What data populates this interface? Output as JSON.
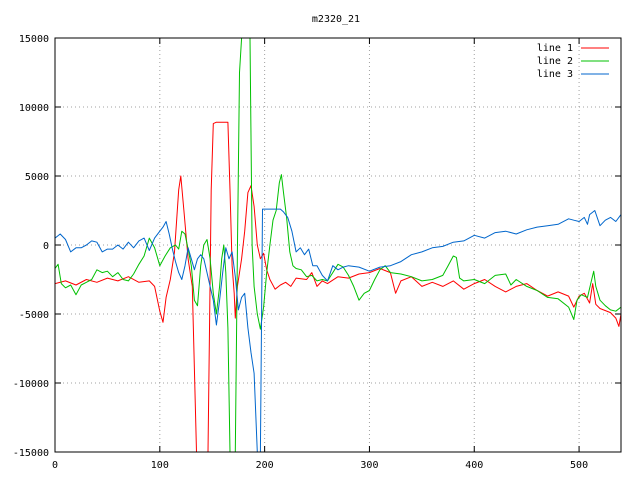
{
  "chart_data": {
    "type": "line",
    "title": "m2320_21",
    "xlabel": "",
    "ylabel": "",
    "xlim": [
      0,
      540
    ],
    "ylim": [
      -15000,
      15000
    ],
    "x_ticks": [
      0,
      100,
      200,
      300,
      400,
      500
    ],
    "y_ticks": [
      -15000,
      -10000,
      -5000,
      0,
      5000,
      10000,
      15000
    ],
    "grid": true,
    "legend_position": "top-right",
    "series": [
      {
        "name": "line 1",
        "color": "#ff0000",
        "points": [
          [
            0,
            -2800
          ],
          [
            10,
            -2600
          ],
          [
            20,
            -2900
          ],
          [
            30,
            -2500
          ],
          [
            40,
            -2700
          ],
          [
            50,
            -2400
          ],
          [
            60,
            -2600
          ],
          [
            70,
            -2300
          ],
          [
            80,
            -2700
          ],
          [
            90,
            -2600
          ],
          [
            95,
            -3000
          ],
          [
            100,
            -4800
          ],
          [
            103,
            -5600
          ],
          [
            106,
            -3800
          ],
          [
            110,
            -2500
          ],
          [
            114,
            -500
          ],
          [
            118,
            4000
          ],
          [
            120,
            5000
          ],
          [
            123,
            2500
          ],
          [
            127,
            -1000
          ],
          [
            131,
            -3000
          ],
          [
            135,
            -15000
          ],
          [
            146,
            -15000
          ],
          [
            149,
            4000
          ],
          [
            151,
            8800
          ],
          [
            154,
            8900
          ],
          [
            165,
            8900
          ],
          [
            167,
            4000
          ],
          [
            169,
            -1500
          ],
          [
            171,
            -3500
          ],
          [
            172,
            -5300
          ],
          [
            174,
            -3000
          ],
          [
            178,
            -1000
          ],
          [
            181,
            1000
          ],
          [
            184,
            3800
          ],
          [
            187,
            4300
          ],
          [
            190,
            2800
          ],
          [
            193,
            0
          ],
          [
            196,
            -1000
          ],
          [
            199,
            -600
          ],
          [
            202,
            -1800
          ],
          [
            205,
            -2500
          ],
          [
            210,
            -3200
          ],
          [
            215,
            -2900
          ],
          [
            220,
            -2700
          ],
          [
            225,
            -3000
          ],
          [
            230,
            -2400
          ],
          [
            240,
            -2500
          ],
          [
            245,
            -2000
          ],
          [
            250,
            -3000
          ],
          [
            255,
            -2600
          ],
          [
            260,
            -2800
          ],
          [
            270,
            -2300
          ],
          [
            280,
            -2400
          ],
          [
            290,
            -2100
          ],
          [
            300,
            -2000
          ],
          [
            310,
            -1700
          ],
          [
            320,
            -2000
          ],
          [
            325,
            -3500
          ],
          [
            330,
            -2600
          ],
          [
            340,
            -2300
          ],
          [
            350,
            -3000
          ],
          [
            360,
            -2700
          ],
          [
            370,
            -3000
          ],
          [
            380,
            -2600
          ],
          [
            390,
            -3200
          ],
          [
            400,
            -2800
          ],
          [
            410,
            -2500
          ],
          [
            420,
            -3000
          ],
          [
            430,
            -3400
          ],
          [
            440,
            -3000
          ],
          [
            450,
            -2800
          ],
          [
            460,
            -3300
          ],
          [
            470,
            -3700
          ],
          [
            480,
            -3400
          ],
          [
            490,
            -3700
          ],
          [
            495,
            -4500
          ],
          [
            500,
            -3700
          ],
          [
            505,
            -3500
          ],
          [
            510,
            -4200
          ],
          [
            513,
            -2800
          ],
          [
            516,
            -4300
          ],
          [
            520,
            -4600
          ],
          [
            530,
            -4900
          ],
          [
            535,
            -5300
          ],
          [
            538,
            -5900
          ],
          [
            540,
            -5000
          ]
        ]
      },
      {
        "name": "line 2",
        "color": "#00c000",
        "points": [
          [
            0,
            -1700
          ],
          [
            3,
            -1400
          ],
          [
            6,
            -2800
          ],
          [
            10,
            -3100
          ],
          [
            15,
            -2900
          ],
          [
            20,
            -3600
          ],
          [
            25,
            -2900
          ],
          [
            30,
            -2700
          ],
          [
            35,
            -2500
          ],
          [
            40,
            -1800
          ],
          [
            45,
            -2000
          ],
          [
            50,
            -1900
          ],
          [
            55,
            -2300
          ],
          [
            60,
            -2000
          ],
          [
            65,
            -2500
          ],
          [
            70,
            -2600
          ],
          [
            75,
            -2100
          ],
          [
            80,
            -1400
          ],
          [
            85,
            -800
          ],
          [
            90,
            500
          ],
          [
            95,
            -200
          ],
          [
            100,
            -1500
          ],
          [
            105,
            -800
          ],
          [
            110,
            -200
          ],
          [
            115,
            0
          ],
          [
            118,
            -300
          ],
          [
            121,
            1000
          ],
          [
            124,
            800
          ],
          [
            127,
            -300
          ],
          [
            130,
            -1500
          ],
          [
            133,
            -4000
          ],
          [
            136,
            -4400
          ],
          [
            139,
            -1500
          ],
          [
            142,
            0
          ],
          [
            145,
            400
          ],
          [
            148,
            -1000
          ],
          [
            151,
            -3500
          ],
          [
            154,
            -5000
          ],
          [
            157,
            -3000
          ],
          [
            159,
            -1000
          ],
          [
            161,
            0
          ],
          [
            163,
            -2000
          ],
          [
            165,
            -6000
          ],
          [
            167,
            -15000
          ],
          [
            172,
            -15000
          ],
          [
            174,
            -500
          ],
          [
            176,
            12500
          ],
          [
            178,
            15000
          ],
          [
            186,
            15000
          ],
          [
            188,
            0
          ],
          [
            190,
            -3000
          ],
          [
            193,
            -5000
          ],
          [
            196,
            -6100
          ],
          [
            199,
            -4500
          ],
          [
            202,
            -2000
          ],
          [
            205,
            0
          ],
          [
            208,
            1800
          ],
          [
            211,
            2500
          ],
          [
            214,
            4500
          ],
          [
            216,
            5100
          ],
          [
            218,
            3800
          ],
          [
            221,
            2000
          ],
          [
            224,
            -500
          ],
          [
            227,
            -1500
          ],
          [
            230,
            -1700
          ],
          [
            235,
            -1800
          ],
          [
            240,
            -2300
          ],
          [
            245,
            -2200
          ],
          [
            250,
            -2600
          ],
          [
            255,
            -2500
          ],
          [
            260,
            -2600
          ],
          [
            265,
            -2000
          ],
          [
            270,
            -1400
          ],
          [
            275,
            -1600
          ],
          [
            280,
            -2200
          ],
          [
            285,
            -3000
          ],
          [
            290,
            -4000
          ],
          [
            295,
            -3500
          ],
          [
            300,
            -3300
          ],
          [
            305,
            -2500
          ],
          [
            310,
            -1800
          ],
          [
            315,
            -1500
          ],
          [
            320,
            -2000
          ],
          [
            330,
            -2100
          ],
          [
            340,
            -2300
          ],
          [
            350,
            -2600
          ],
          [
            360,
            -2500
          ],
          [
            370,
            -2200
          ],
          [
            375,
            -1500
          ],
          [
            380,
            -800
          ],
          [
            383,
            -900
          ],
          [
            386,
            -2400
          ],
          [
            390,
            -2600
          ],
          [
            400,
            -2500
          ],
          [
            410,
            -2800
          ],
          [
            420,
            -2200
          ],
          [
            430,
            -2100
          ],
          [
            435,
            -2900
          ],
          [
            440,
            -2500
          ],
          [
            450,
            -3000
          ],
          [
            460,
            -3300
          ],
          [
            470,
            -3800
          ],
          [
            480,
            -3900
          ],
          [
            490,
            -4500
          ],
          [
            495,
            -5400
          ],
          [
            498,
            -4000
          ],
          [
            502,
            -3600
          ],
          [
            508,
            -3800
          ],
          [
            512,
            -2500
          ],
          [
            514,
            -1900
          ],
          [
            516,
            -3000
          ],
          [
            520,
            -4000
          ],
          [
            525,
            -4400
          ],
          [
            530,
            -4700
          ],
          [
            535,
            -4800
          ],
          [
            540,
            -4500
          ]
        ]
      },
      {
        "name": "line 3",
        "color": "#0066cc",
        "points": [
          [
            0,
            500
          ],
          [
            5,
            800
          ],
          [
            10,
            400
          ],
          [
            15,
            -500
          ],
          [
            20,
            -200
          ],
          [
            25,
            -200
          ],
          [
            30,
            0
          ],
          [
            35,
            300
          ],
          [
            40,
            200
          ],
          [
            45,
            -500
          ],
          [
            50,
            -300
          ],
          [
            55,
            -300
          ],
          [
            60,
            0
          ],
          [
            65,
            -300
          ],
          [
            70,
            200
          ],
          [
            75,
            -200
          ],
          [
            80,
            300
          ],
          [
            85,
            500
          ],
          [
            90,
            -400
          ],
          [
            95,
            500
          ],
          [
            100,
            1000
          ],
          [
            103,
            1300
          ],
          [
            106,
            1700
          ],
          [
            109,
            800
          ],
          [
            112,
            -300
          ],
          [
            115,
            -1200
          ],
          [
            118,
            -2000
          ],
          [
            121,
            -2500
          ],
          [
            124,
            -1500
          ],
          [
            127,
            -200
          ],
          [
            130,
            -1000
          ],
          [
            133,
            -1800
          ],
          [
            136,
            -1000
          ],
          [
            139,
            -700
          ],
          [
            142,
            -1000
          ],
          [
            145,
            -2000
          ],
          [
            148,
            -3000
          ],
          [
            151,
            -4000
          ],
          [
            154,
            -5800
          ],
          [
            157,
            -4000
          ],
          [
            160,
            -2000
          ],
          [
            163,
            -200
          ],
          [
            166,
            -1000
          ],
          [
            169,
            -500
          ],
          [
            172,
            -2300
          ],
          [
            175,
            -4700
          ],
          [
            178,
            -3800
          ],
          [
            181,
            -3500
          ],
          [
            184,
            -6000
          ],
          [
            187,
            -7800
          ],
          [
            190,
            -9300
          ],
          [
            193,
            -15000
          ],
          [
            196,
            -15000
          ],
          [
            198,
            2600
          ],
          [
            215,
            2600
          ],
          [
            218,
            2400
          ],
          [
            222,
            2000
          ],
          [
            226,
            1000
          ],
          [
            230,
            -500
          ],
          [
            234,
            -200
          ],
          [
            238,
            -700
          ],
          [
            242,
            -300
          ],
          [
            246,
            -1500
          ],
          [
            250,
            -1500
          ],
          [
            255,
            -2200
          ],
          [
            260,
            -2600
          ],
          [
            265,
            -1500
          ],
          [
            270,
            -1800
          ],
          [
            275,
            -1600
          ],
          [
            280,
            -1500
          ],
          [
            290,
            -1600
          ],
          [
            300,
            -1900
          ],
          [
            310,
            -1600
          ],
          [
            320,
            -1500
          ],
          [
            330,
            -1200
          ],
          [
            340,
            -700
          ],
          [
            350,
            -500
          ],
          [
            360,
            -200
          ],
          [
            370,
            -100
          ],
          [
            380,
            200
          ],
          [
            390,
            300
          ],
          [
            400,
            700
          ],
          [
            410,
            500
          ],
          [
            420,
            900
          ],
          [
            430,
            1000
          ],
          [
            440,
            800
          ],
          [
            450,
            1100
          ],
          [
            460,
            1300
          ],
          [
            470,
            1400
          ],
          [
            480,
            1500
          ],
          [
            490,
            1900
          ],
          [
            495,
            1800
          ],
          [
            500,
            1700
          ],
          [
            505,
            2000
          ],
          [
            508,
            1500
          ],
          [
            510,
            2200
          ],
          [
            515,
            2500
          ],
          [
            520,
            1400
          ],
          [
            525,
            1800
          ],
          [
            530,
            2000
          ],
          [
            535,
            1700
          ],
          [
            540,
            2200
          ]
        ]
      }
    ]
  }
}
